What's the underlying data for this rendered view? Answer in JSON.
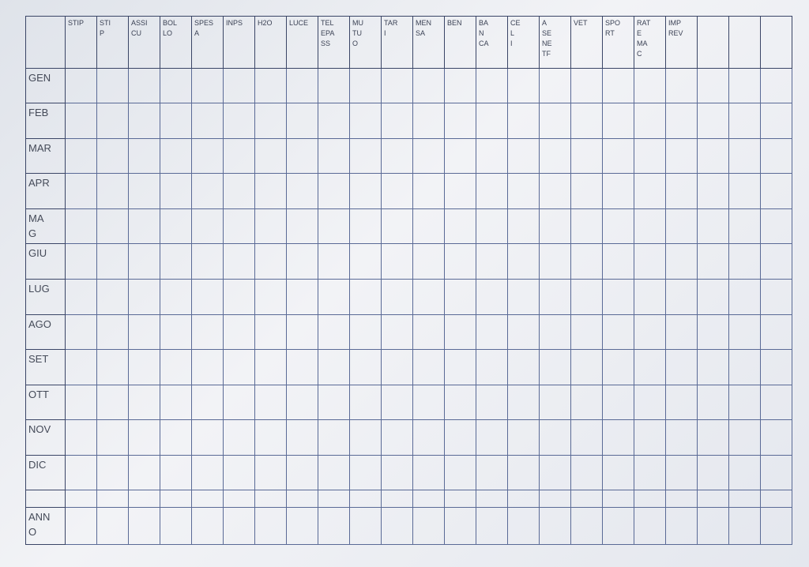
{
  "table": {
    "headers": [
      "STIP",
      "STI\nP",
      "ASSI\nCU",
      "BOL\nLO",
      "SPES\nA",
      "INPS",
      "H2O",
      "LUCE",
      "TEL\nEPA\nSS",
      "MU\nTU\nO",
      "TAR\nI",
      "MEN\nSA",
      "BEN",
      "BA\nN\nCA",
      "CE\nL\nI",
      "A\nSE\nNE\nTF",
      "VET",
      "SPO\nRT",
      "RAT\nE\nMA\nC",
      "IMP\nREV"
    ],
    "row_labels": [
      "GEN",
      "FEB",
      "MAR",
      "APR",
      "MA\nG",
      "GIU",
      "LUG",
      "AGO",
      "SET",
      "OTT",
      "NOV",
      "DIC"
    ],
    "footer_label": "ANN\nO"
  }
}
